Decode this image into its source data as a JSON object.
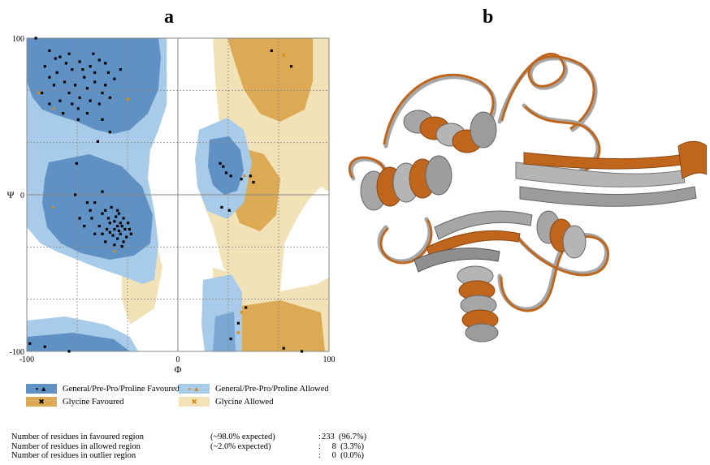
{
  "panels": {
    "left_label": "a",
    "right_label": "b"
  },
  "chart_data": {
    "type": "scatter",
    "title": "",
    "xlabel": "Φ",
    "ylabel": "Ψ",
    "xlim": [
      -100,
      100
    ],
    "ylim": [
      -100,
      100
    ],
    "xticks": [
      "-100",
      "0",
      "100"
    ],
    "yticks": [
      "100",
      "0",
      "-100"
    ],
    "grid": true,
    "regions": [
      "General/Pre-Pro/Proline Favoured",
      "General/Pre-Pro/Proline Allowed",
      "Glycine Favoured",
      "Glycine Allowed"
    ],
    "series": [
      {
        "name": "General/Pre-Pro/Proline Favoured",
        "color": "#000000",
        "points": [
          [
            -85,
            92
          ],
          [
            -78,
            88
          ],
          [
            -72,
            90
          ],
          [
            -65,
            85
          ],
          [
            -58,
            82
          ],
          [
            -52,
            86
          ],
          [
            -46,
            78
          ],
          [
            -70,
            80
          ],
          [
            -62,
            75
          ],
          [
            -55,
            72
          ],
          [
            -48,
            70
          ],
          [
            -80,
            78
          ],
          [
            -75,
            72
          ],
          [
            -68,
            70
          ],
          [
            -60,
            68
          ],
          [
            -50,
            65
          ],
          [
            -85,
            75
          ],
          [
            -65,
            62
          ],
          [
            -58,
            60
          ],
          [
            -72,
            65
          ],
          [
            -52,
            58
          ],
          [
            -45,
            62
          ],
          [
            -88,
            82
          ],
          [
            -82,
            70
          ],
          [
            -55,
            78
          ],
          [
            -42,
            74
          ],
          [
            -66,
            55
          ],
          [
            -78,
            60
          ],
          [
            -60,
            52
          ],
          [
            -90,
            65
          ],
          [
            -94,
            100
          ],
          [
            -38,
            80
          ],
          [
            -70,
            58
          ],
          [
            -63,
            80
          ],
          [
            -56,
            90
          ],
          [
            -48,
            84
          ],
          [
            -81,
            87
          ],
          [
            -74,
            84
          ],
          [
            -76,
            52
          ],
          [
            -66,
            48
          ],
          [
            -50,
            48
          ],
          [
            -45,
            40
          ],
          [
            -85,
            58
          ],
          [
            -53,
            34
          ],
          [
            -58,
            -10
          ],
          [
            -65,
            -15
          ],
          [
            -55,
            -5
          ],
          [
            -50,
            -12
          ],
          [
            -45,
            -18
          ],
          [
            -40,
            -20
          ],
          [
            -38,
            -25
          ],
          [
            -42,
            -22
          ],
          [
            -35,
            -22
          ],
          [
            -40,
            -28
          ],
          [
            -46,
            -15
          ],
          [
            -52,
            -20
          ],
          [
            -36,
            -15
          ],
          [
            -44,
            -8
          ],
          [
            -48,
            -30
          ],
          [
            -55,
            -25
          ],
          [
            -62,
            -20
          ],
          [
            -38,
            -18
          ],
          [
            -32,
            -22
          ],
          [
            -41,
            -14
          ],
          [
            -39,
            -23
          ],
          [
            -43,
            -26
          ],
          [
            -37,
            -20
          ],
          [
            -34,
            -27
          ],
          [
            -47,
            -22
          ],
          [
            -42,
            -17
          ],
          [
            -60,
            -5
          ],
          [
            -50,
            2
          ],
          [
            -68,
            0
          ],
          [
            -40,
            -10
          ],
          [
            -36,
            -30
          ],
          [
            -67,
            20
          ],
          [
            -33,
            -18
          ],
          [
            -31,
            -25
          ],
          [
            -37,
            -33
          ],
          [
            -50,
            -25
          ],
          [
            -48,
            -10
          ],
          [
            -42,
            -32
          ],
          [
            -39,
            -12
          ],
          [
            -57,
            -15
          ],
          [
            -45,
            -24
          ],
          [
            30,
            18
          ],
          [
            32,
            14
          ],
          [
            28,
            20
          ],
          [
            35,
            12
          ],
          [
            42,
            10
          ],
          [
            48,
            12
          ],
          [
            50,
            8
          ],
          [
            34,
            -10
          ],
          [
            29,
            -8
          ],
          [
            -98,
            -95
          ],
          [
            -72,
            -100
          ],
          [
            70,
            -98
          ],
          [
            82,
            -100
          ],
          [
            40,
            -82
          ],
          [
            45,
            -72
          ],
          [
            35,
            -92
          ],
          [
            75,
            82
          ],
          [
            62,
            92
          ],
          [
            -88,
            -97
          ]
        ]
      },
      {
        "name": "General/Pre-Pro/Proline Allowed",
        "color": "#d98b1a",
        "points": [
          [
            -92,
            65
          ],
          [
            -82,
            55
          ],
          [
            -33,
            61
          ],
          [
            -83,
            -8
          ],
          [
            -42,
            -36
          ],
          [
            44,
            12
          ],
          [
            42,
            -75
          ],
          [
            40,
            -88
          ],
          [
            70,
            89
          ]
        ]
      }
    ]
  },
  "legend": [
    {
      "label": "General/Pre-Pro/Proline Favoured",
      "marker": "▪ ▲",
      "marker_color": "#000000",
      "swatch": "#5f91c4"
    },
    {
      "label": "General/Pre-Pro/Proline Allowed",
      "marker": "▪ ▲",
      "marker_color": "#d98b1a",
      "swatch": "#a9cbea"
    },
    {
      "label": "Glycine Favoured",
      "marker": "✖",
      "marker_color": "#000000",
      "swatch": "#dcaa55"
    },
    {
      "label": "Glycine Allowed",
      "marker": "✖",
      "marker_color": "#d98b1a",
      "swatch": "#f2e2b8"
    }
  ],
  "stats": [
    {
      "label": "Number of residues in favoured region",
      "expected": "(~98.0% expected)",
      "colon": ":",
      "value": "233  (96.7%)"
    },
    {
      "label": "Number of residues in allowed region",
      "expected": "(~2.0% expected)",
      "colon": ":",
      "value": "8  (3.3%)"
    },
    {
      "label": "Number of residues in outlier region",
      "expected": "",
      "colon": ":",
      "value": "0  (0.0%)"
    }
  ],
  "colors": {
    "general_favoured": "#5f91c4",
    "general_allowed": "#a9cbea",
    "glycine_favoured": "#dcaa55",
    "glycine_allowed": "#f2e2b8",
    "structure_orange": "#c0661c",
    "structure_gray": "#a6a6a6"
  }
}
